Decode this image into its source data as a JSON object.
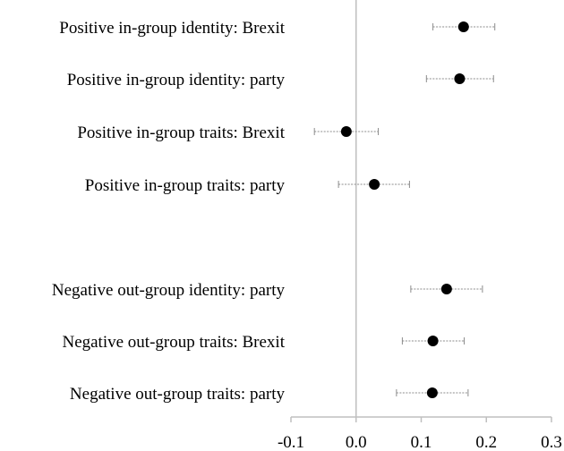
{
  "chart_data": {
    "type": "scatter",
    "title": "",
    "xlabel": "",
    "ylabel": "",
    "xlim": [
      -0.1,
      0.3
    ],
    "xticks": [
      "-0.1",
      "0.0",
      "0.1",
      "0.2",
      "0.3"
    ],
    "xtick_values": [
      -0.1,
      0.0,
      0.1,
      0.2,
      0.3
    ],
    "grid": false,
    "reference_line_x": 0.0,
    "marker_color": "#000000",
    "error_bar_color": "#8c8c8c",
    "axis_color": "#bfbfbf",
    "series": [
      {
        "points": [
          {
            "label": "Positive in-group identity: Brexit",
            "estimate": 0.165,
            "lower": 0.118,
            "upper": 0.213
          },
          {
            "label": "Positive in-group identity: party",
            "estimate": 0.159,
            "lower": 0.108,
            "upper": 0.211
          },
          {
            "label": "Positive in-group traits: Brexit",
            "estimate": -0.015,
            "lower": -0.064,
            "upper": 0.034
          },
          {
            "label": "Positive in-group traits: party",
            "estimate": 0.028,
            "lower": -0.027,
            "upper": 0.082
          },
          {
            "label": "Negative out-group identity: party",
            "estimate": 0.139,
            "lower": 0.084,
            "upper": 0.194
          },
          {
            "label": "Negative out-group traits: Brexit",
            "estimate": 0.118,
            "lower": 0.071,
            "upper": 0.166
          },
          {
            "label": "Negative out-group traits: party",
            "estimate": 0.117,
            "lower": 0.062,
            "upper": 0.172
          }
        ]
      }
    ]
  }
}
